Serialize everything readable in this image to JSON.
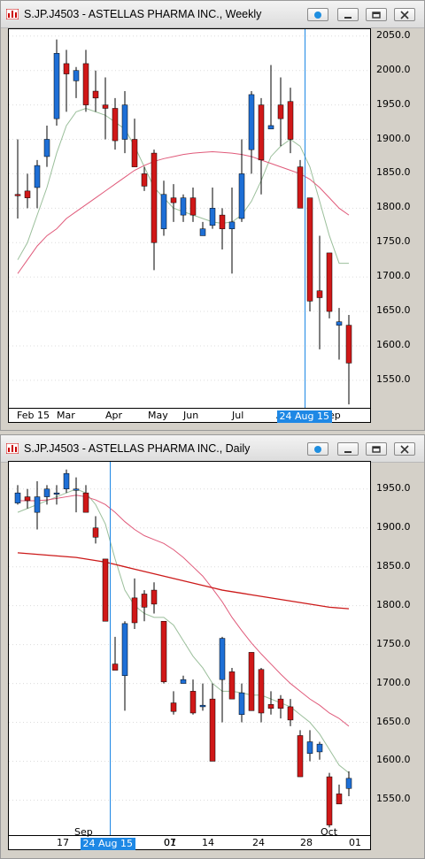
{
  "windows": [
    {
      "title": "S.JP.J4503 - ASTELLAS PHARMA INC., Weekly",
      "buttons": [
        "dot-icon",
        "minimize-icon",
        "restore-icon",
        "close-icon"
      ],
      "y_ticks": [
        "2050.0",
        "2000.0",
        "1950.0",
        "1900.0",
        "1850.0",
        "1800.0",
        "1750.0",
        "1700.0",
        "1650.0",
        "1600.0",
        "1550.0"
      ],
      "x_ticks": [
        "Feb 15",
        "Mar",
        "Apr",
        "May",
        "Jun",
        "Jul",
        "Aug",
        "Sep"
      ],
      "highlight_label": "24 Aug 15",
      "colors": {
        "up": "#1e6fd6",
        "down": "#d01818",
        "ma_fast": "#9bbf9b",
        "ma_slow": "#e05a7a",
        "cursor": "#1e88e5"
      }
    },
    {
      "title": "S.JP.J4503 - ASTELLAS PHARMA INC., Daily",
      "buttons": [
        "dot-icon",
        "minimize-icon",
        "restore-icon",
        "close-icon"
      ],
      "y_ticks": [
        "1950.0",
        "1900.0",
        "1850.0",
        "1800.0",
        "1750.0",
        "1700.0",
        "1650.0",
        "1600.0",
        "1550.0"
      ],
      "x_ticks": [
        "17",
        "Sep",
        "01",
        "07",
        "14",
        "24",
        "28",
        "Oct",
        "01"
      ],
      "highlight_label": "24 Aug 15",
      "colors": {
        "up": "#1e6fd6",
        "down": "#d01818",
        "ma_fast": "#9bbf9b",
        "ma_mid": "#e05a7a",
        "ma_slow": "#cc1a1a",
        "cursor": "#1e88e5"
      }
    }
  ],
  "chart_data": [
    {
      "type": "candlestick",
      "title": "S.JP.J4503 - ASTELLAS PHARMA INC., Weekly",
      "ylim": [
        1510,
        2060
      ],
      "x_label_dates": [
        "Feb 15",
        "Mar",
        "Apr",
        "May",
        "Jun",
        "Jul",
        "24 Aug 15",
        "Sep"
      ],
      "candles": [
        {
          "o": 1820,
          "h": 1900,
          "l": 1785,
          "c": 1818
        },
        {
          "o": 1825,
          "h": 1850,
          "l": 1800,
          "c": 1815
        },
        {
          "o": 1830,
          "h": 1870,
          "l": 1800,
          "c": 1862
        },
        {
          "o": 1875,
          "h": 1920,
          "l": 1860,
          "c": 1900
        },
        {
          "o": 1930,
          "h": 2045,
          "l": 1920,
          "c": 2025
        },
        {
          "o": 2010,
          "h": 2030,
          "l": 1940,
          "c": 1995
        },
        {
          "o": 1985,
          "h": 2005,
          "l": 1960,
          "c": 2000
        },
        {
          "o": 2010,
          "h": 2030,
          "l": 1940,
          "c": 1950
        },
        {
          "o": 1970,
          "h": 2000,
          "l": 1940,
          "c": 1960
        },
        {
          "o": 1950,
          "h": 1990,
          "l": 1900,
          "c": 1945
        },
        {
          "o": 1945,
          "h": 1960,
          "l": 1885,
          "c": 1898
        },
        {
          "o": 1900,
          "h": 1970,
          "l": 1880,
          "c": 1950
        },
        {
          "o": 1900,
          "h": 1930,
          "l": 1860,
          "c": 1860
        },
        {
          "o": 1850,
          "h": 1860,
          "l": 1825,
          "c": 1832
        },
        {
          "o": 1880,
          "h": 1885,
          "l": 1710,
          "c": 1750
        },
        {
          "o": 1770,
          "h": 1840,
          "l": 1760,
          "c": 1820
        },
        {
          "o": 1815,
          "h": 1835,
          "l": 1780,
          "c": 1808
        },
        {
          "o": 1790,
          "h": 1820,
          "l": 1780,
          "c": 1815
        },
        {
          "o": 1815,
          "h": 1830,
          "l": 1780,
          "c": 1790
        },
        {
          "o": 1760,
          "h": 1780,
          "l": 1760,
          "c": 1770
        },
        {
          "o": 1775,
          "h": 1830,
          "l": 1770,
          "c": 1800
        },
        {
          "o": 1790,
          "h": 1800,
          "l": 1740,
          "c": 1770
        },
        {
          "o": 1770,
          "h": 1830,
          "l": 1705,
          "c": 1780
        },
        {
          "o": 1785,
          "h": 1900,
          "l": 1780,
          "c": 1850
        },
        {
          "o": 1885,
          "h": 1970,
          "l": 1850,
          "c": 1965
        },
        {
          "o": 1950,
          "h": 1960,
          "l": 1820,
          "c": 1870
        },
        {
          "o": 1915,
          "h": 2008,
          "l": 1915,
          "c": 1920
        },
        {
          "o": 1950,
          "h": 1990,
          "l": 1890,
          "c": 1930
        },
        {
          "o": 1955,
          "h": 1975,
          "l": 1880,
          "c": 1900
        },
        {
          "o": 1860,
          "h": 1870,
          "l": 1800,
          "c": 1800
        },
        {
          "o": 1815,
          "h": 1815,
          "l": 1650,
          "c": 1665
        },
        {
          "o": 1680,
          "h": 1760,
          "l": 1595,
          "c": 1670
        },
        {
          "o": 1735,
          "h": 1735,
          "l": 1640,
          "c": 1650
        },
        {
          "o": 1630,
          "h": 1655,
          "l": 1580,
          "c": 1635
        },
        {
          "o": 1630,
          "h": 1645,
          "l": 1515,
          "c": 1575
        }
      ],
      "ma_fast": [
        1725,
        1750,
        1790,
        1830,
        1880,
        1920,
        1940,
        1945,
        1940,
        1935,
        1925,
        1915,
        1890,
        1860,
        1830,
        1815,
        1800,
        1795,
        1790,
        1785,
        1780,
        1778,
        1780,
        1790,
        1810,
        1840,
        1875,
        1890,
        1900,
        1890,
        1860,
        1810,
        1760,
        1720,
        1720
      ],
      "ma_slow": [
        1705,
        1725,
        1745,
        1760,
        1770,
        1785,
        1795,
        1805,
        1815,
        1825,
        1835,
        1845,
        1855,
        1862,
        1868,
        1872,
        1875,
        1878,
        1880,
        1881,
        1882,
        1881,
        1880,
        1878,
        1875,
        1870,
        1865,
        1860,
        1855,
        1850,
        1842,
        1830,
        1815,
        1800,
        1790
      ]
    },
    {
      "type": "candlestick",
      "title": "S.JP.J4503 - ASTELLAS PHARMA INC., Daily",
      "ylim": [
        1505,
        1985
      ],
      "x_label_dates": [
        "17",
        "24 Aug 15",
        "Sep",
        "01",
        "07",
        "14",
        "24",
        "28",
        "Oct",
        "01"
      ],
      "candles": [
        {
          "o": 1932,
          "h": 1955,
          "l": 1930,
          "c": 1945
        },
        {
          "o": 1940,
          "h": 1950,
          "l": 1925,
          "c": 1935
        },
        {
          "o": 1920,
          "h": 1960,
          "l": 1898,
          "c": 1940
        },
        {
          "o": 1940,
          "h": 1955,
          "l": 1930,
          "c": 1950
        },
        {
          "o": 1945,
          "h": 1955,
          "l": 1930,
          "c": 1945
        },
        {
          "o": 1950,
          "h": 1975,
          "l": 1945,
          "c": 1970
        },
        {
          "o": 1950,
          "h": 1965,
          "l": 1920,
          "c": 1950
        },
        {
          "o": 1945,
          "h": 1955,
          "l": 1920,
          "c": 1920
        },
        {
          "o": 1900,
          "h": 1915,
          "l": 1880,
          "c": 1888
        },
        {
          "o": 1860,
          "h": 1860,
          "l": 1780,
          "c": 1780
        },
        {
          "o": 1725,
          "h": 1760,
          "l": 1720,
          "c": 1717
        },
        {
          "o": 1710,
          "h": 1780,
          "l": 1665,
          "c": 1777
        },
        {
          "o": 1810,
          "h": 1835,
          "l": 1770,
          "c": 1778
        },
        {
          "o": 1815,
          "h": 1820,
          "l": 1780,
          "c": 1798
        },
        {
          "o": 1820,
          "h": 1830,
          "l": 1790,
          "c": 1802
        },
        {
          "o": 1780,
          "h": 1780,
          "l": 1700,
          "c": 1702
        },
        {
          "o": 1675,
          "h": 1690,
          "l": 1660,
          "c": 1664
        },
        {
          "o": 1700,
          "h": 1710,
          "l": 1700,
          "c": 1705
        },
        {
          "o": 1690,
          "h": 1705,
          "l": 1660,
          "c": 1662
        },
        {
          "o": 1670,
          "h": 1700,
          "l": 1665,
          "c": 1672
        },
        {
          "o": 1680,
          "h": 1700,
          "l": 1600,
          "c": 1600
        },
        {
          "o": 1705,
          "h": 1760,
          "l": 1650,
          "c": 1758
        },
        {
          "o": 1715,
          "h": 1720,
          "l": 1680,
          "c": 1680
        },
        {
          "o": 1660,
          "h": 1700,
          "l": 1650,
          "c": 1688
        },
        {
          "o": 1740,
          "h": 1740,
          "l": 1665,
          "c": 1665
        },
        {
          "o": 1718,
          "h": 1720,
          "l": 1650,
          "c": 1662
        },
        {
          "o": 1673,
          "h": 1690,
          "l": 1660,
          "c": 1668
        },
        {
          "o": 1680,
          "h": 1685,
          "l": 1655,
          "c": 1668
        },
        {
          "o": 1670,
          "h": 1680,
          "l": 1645,
          "c": 1653
        },
        {
          "o": 1633,
          "h": 1640,
          "l": 1580,
          "c": 1580
        },
        {
          "o": 1610,
          "h": 1640,
          "l": 1600,
          "c": 1625
        },
        {
          "o": 1612,
          "h": 1625,
          "l": 1602,
          "c": 1622
        },
        {
          "o": 1580,
          "h": 1585,
          "l": 1515,
          "c": 1518
        },
        {
          "o": 1558,
          "h": 1570,
          "l": 1545,
          "c": 1545
        },
        {
          "o": 1565,
          "h": 1587,
          "l": 1555,
          "c": 1578
        }
      ],
      "ma_fast": [
        1920,
        1925,
        1930,
        1935,
        1940,
        1945,
        1950,
        1945,
        1930,
        1905,
        1860,
        1820,
        1800,
        1790,
        1785,
        1785,
        1775,
        1755,
        1735,
        1720,
        1700,
        1690,
        1690,
        1688,
        1685,
        1685,
        1680,
        1675,
        1670,
        1660,
        1650,
        1635,
        1615,
        1595,
        1585
      ],
      "ma_mid": [
        1935,
        1935,
        1935,
        1936,
        1938,
        1940,
        1942,
        1940,
        1936,
        1930,
        1920,
        1908,
        1898,
        1890,
        1885,
        1880,
        1872,
        1862,
        1850,
        1838,
        1822,
        1805,
        1785,
        1768,
        1752,
        1738,
        1725,
        1712,
        1700,
        1690,
        1680,
        1672,
        1662,
        1655,
        1645
      ],
      "ma_slow": [
        1868,
        1867,
        1866,
        1865,
        1864,
        1863,
        1862,
        1860,
        1858,
        1856,
        1853,
        1850,
        1847,
        1844,
        1841,
        1838,
        1835,
        1832,
        1829,
        1826,
        1823,
        1820,
        1818,
        1816,
        1814,
        1812,
        1810,
        1808,
        1806,
        1804,
        1802,
        1800,
        1798,
        1797,
        1796
      ]
    }
  ]
}
